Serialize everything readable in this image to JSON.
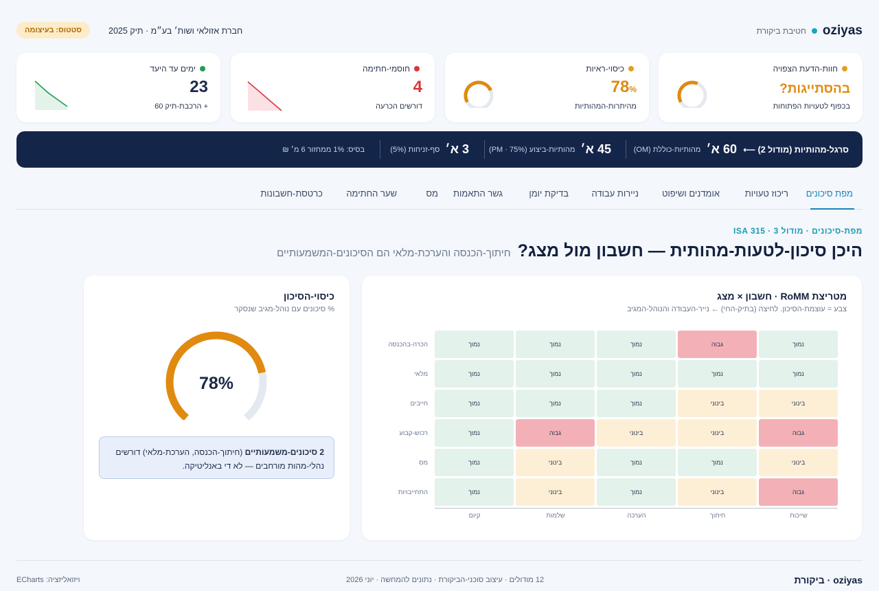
{
  "header": {
    "brand": "oziyas",
    "brand_sub": "חטיבת ביקורת",
    "company": "חברת אזולאי ושות׳ בע״מ · תיק 2025",
    "status": "סטטוס: בעיצומה"
  },
  "kpis": [
    {
      "label": "חוות-הדעת הצפויה",
      "value": "בהסתייגות?",
      "sub": "בכפוף לטעויות הפתוחות",
      "dot_color": "#e0a020",
      "value_color": "#e08a10",
      "gauge": 0.6
    },
    {
      "label": "כיסוי-ראיות",
      "value": "78",
      "unit": "%",
      "sub": "מהיתרות-המהותיות",
      "dot_color": "#e0a020",
      "value_color": "#e08a10",
      "gauge": 0.78
    },
    {
      "label": "חוסמי-חתימה",
      "value": "4",
      "sub": "דורשים הכרעה",
      "dot_color": "#d9363e",
      "value_color": "#d9363e"
    },
    {
      "label": "ימים עד היעד",
      "value": "23",
      "sub": "+ הרכבת-תיק 60",
      "dot_color": "#1f9d55",
      "value_color": "#13213f"
    }
  ],
  "banner": {
    "title": "סרגל-מהותיות (מודול 2) ⟵",
    "items": [
      {
        "big": "60 א׳",
        "sm": "מהותיות-כוללת (OM)"
      },
      {
        "big": "45 א׳",
        "sm": "מהותיות-ביצוע (75% · PM)"
      },
      {
        "big": "3 א׳",
        "sm": "סף-זניחות (5%)"
      }
    ],
    "basis": "בסיס: 1% ממחזור 6 מ׳ ₪"
  },
  "tabs": [
    "מפת סיכונים",
    "ריכוז טעויות",
    "אומדנים ושיפוט",
    "ניירות עבודה",
    "בדיקת יומן",
    "גשר התאמות",
    "מס",
    "שער החתימה",
    "כרטסת-חשבונות"
  ],
  "active_tab": 0,
  "eyebrow": "מפת-סיכונים · מודול 3 · ISA 315",
  "title": "היכן סיכון-לטעות-מהותית — חשבון מול מצג?",
  "title_sub": "חיתוך-הכנסה והערכת-מלאי הם הסיכונים-המשמעותיים",
  "matrix": {
    "title": "מטריצת RoMM · חשבון × מצג",
    "subtitle": "צבע = עוצמת-הסיכון. לחיצה (בתיק-החי) ← נייר-העבודה והנוהל-המגיב",
    "columns": [
      "שייכות",
      "חיתוך",
      "הערכה",
      "שלמות",
      "קיום"
    ],
    "rows": [
      "הכרה-בהכנסה",
      "מלאי",
      "חייבים",
      "רכוש-קבוע",
      "מס",
      "התחייבויות"
    ],
    "level_labels": {
      "low": "נמוך",
      "mid": "בינוני",
      "high": "גבוה"
    },
    "level_colors": {
      "low": "#e3f2ea",
      "mid": "#fdefd6",
      "high": "#f3b1b7"
    },
    "cells": [
      [
        "low",
        "high",
        "low",
        "low",
        "low"
      ],
      [
        "low",
        "low",
        "low",
        "low",
        "low"
      ],
      [
        "mid",
        "mid",
        "low",
        "low",
        "low"
      ],
      [
        "high",
        "mid",
        "mid",
        "high",
        "low"
      ],
      [
        "mid",
        "low",
        "low",
        "mid",
        "low"
      ],
      [
        "high",
        "mid",
        "low",
        "mid",
        "low"
      ]
    ]
  },
  "coverage": {
    "title": "כיסוי-הסיכון",
    "subtitle": "% סיכונים עם נוהל-מגיב שנסקר",
    "value": 78,
    "value_text": "78%",
    "color": "#e08a10",
    "track_color": "#e4e9f1",
    "note_bold": "2 סיכונים-משמעותיים",
    "note_text": "(חיתוך-הכנסה, הערכת-מלאי) דורשים נהלי-מהות מורחבים — לא די באנליטיקה."
  },
  "footer": {
    "brand": "oziyas · ביקורת",
    "mid": "12 מודולים · עיצוב סוכני-הביקורת · נתונים להמחשה · יוני 2026",
    "left": "ויזואליזציה: ECharts"
  }
}
